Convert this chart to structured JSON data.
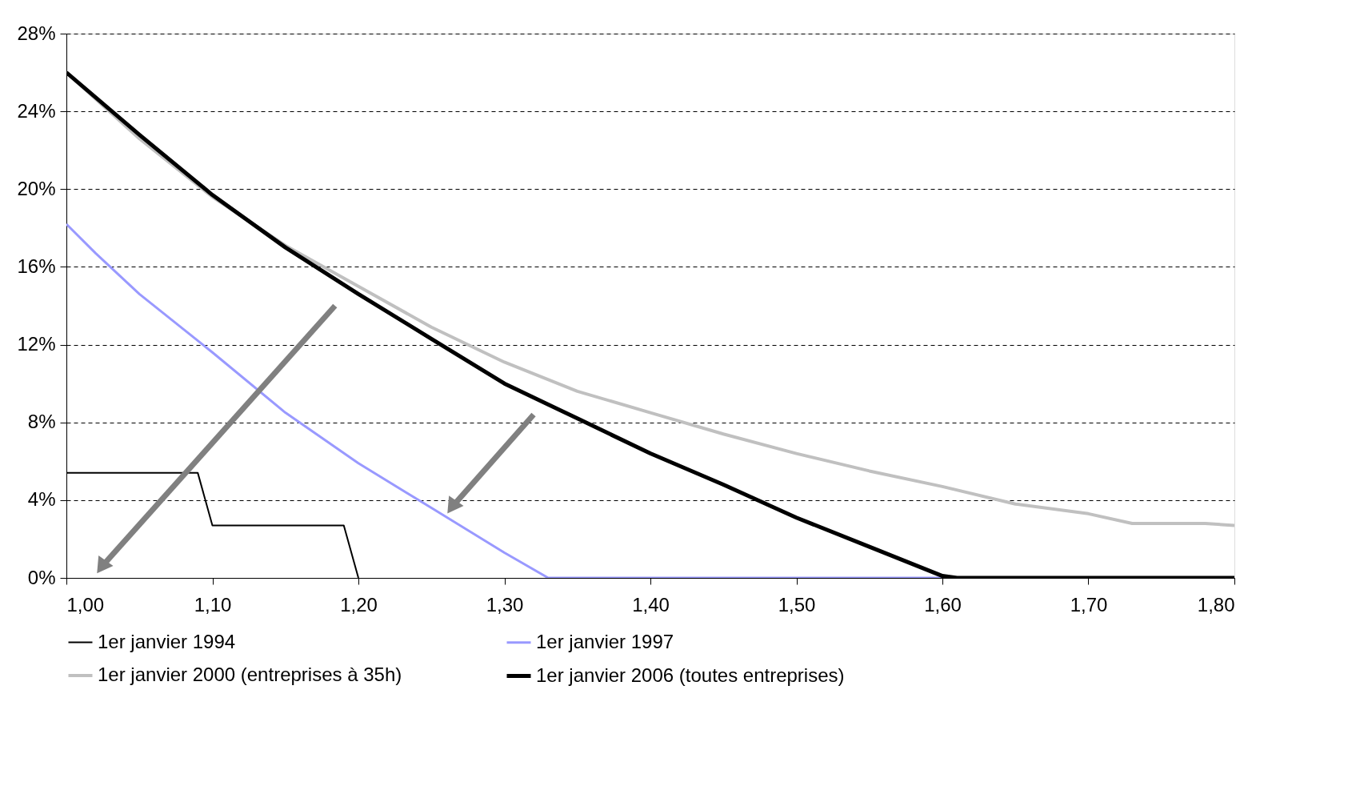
{
  "chart_data": {
    "type": "line",
    "xlim": [
      1.0,
      1.8
    ],
    "xticks": [
      {
        "value": 1.0,
        "label": "1,00"
      },
      {
        "value": 1.1,
        "label": "1,10"
      },
      {
        "value": 1.2,
        "label": "1,20"
      },
      {
        "value": 1.3,
        "label": "1,30"
      },
      {
        "value": 1.4,
        "label": "1,40"
      },
      {
        "value": 1.5,
        "label": "1,50"
      },
      {
        "value": 1.6,
        "label": "1,60"
      },
      {
        "value": 1.7,
        "label": "1,70"
      },
      {
        "value": 1.8,
        "label": "1,80"
      }
    ],
    "ylim": [
      0,
      28
    ],
    "yticks": [
      {
        "value": 0,
        "label": "0%"
      },
      {
        "value": 4,
        "label": "4%"
      },
      {
        "value": 8,
        "label": "8%"
      },
      {
        "value": 12,
        "label": "12%"
      },
      {
        "value": 16,
        "label": "16%"
      },
      {
        "value": 20,
        "label": "20%"
      },
      {
        "value": 24,
        "label": "24%"
      },
      {
        "value": 28,
        "label": "28%"
      }
    ],
    "grid": "y",
    "legend": "bottom",
    "line_style": "solid",
    "marker": "none",
    "series": [
      {
        "name": "1er janvier 1994",
        "color": "#000000",
        "x": [
          1.0,
          1.09,
          1.1,
          1.19,
          1.2
        ],
        "values": [
          5.4,
          5.4,
          2.7,
          2.7,
          0
        ]
      },
      {
        "name": "1er janvier 1997",
        "color": "#9999ff",
        "x": [
          1.0,
          1.02,
          1.05,
          1.1,
          1.15,
          1.2,
          1.25,
          1.3,
          1.33,
          1.4,
          1.5,
          1.6
        ],
        "values": [
          18.2,
          16.7,
          14.6,
          11.6,
          8.5,
          5.9,
          3.6,
          1.3,
          0,
          0,
          0,
          0
        ]
      },
      {
        "name": "1er janvier 2000 (entreprises à 35h)",
        "color": "#c0c0c0",
        "x": [
          1.0,
          1.05,
          1.1,
          1.15,
          1.2,
          1.25,
          1.3,
          1.35,
          1.4,
          1.45,
          1.5,
          1.55,
          1.6,
          1.65,
          1.7,
          1.73,
          1.78,
          1.8
        ],
        "values": [
          26.0,
          22.6,
          19.6,
          17.1,
          15.0,
          12.9,
          11.1,
          9.6,
          8.5,
          7.4,
          6.4,
          5.5,
          4.7,
          3.8,
          3.3,
          2.8,
          2.8,
          2.7
        ]
      },
      {
        "name": "1er janvier 2006 (toutes entreprises)",
        "color": "#000000",
        "x": [
          1.0,
          1.05,
          1.1,
          1.15,
          1.2,
          1.25,
          1.3,
          1.35,
          1.4,
          1.45,
          1.5,
          1.55,
          1.6,
          1.61,
          1.8
        ],
        "values": [
          26.0,
          22.8,
          19.7,
          17.0,
          14.6,
          12.3,
          10.0,
          8.2,
          6.4,
          4.8,
          3.1,
          1.6,
          0.1,
          0,
          0
        ]
      }
    ]
  }
}
